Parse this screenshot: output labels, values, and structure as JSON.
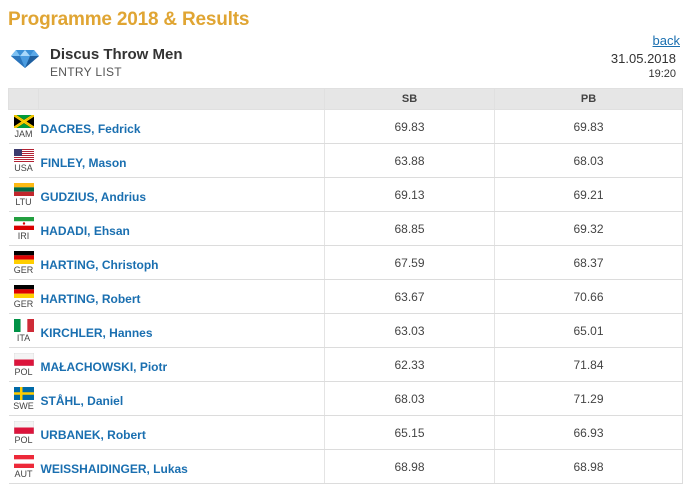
{
  "page": {
    "title": "Programme 2018 & Results",
    "event_name": "Discus Throw Men",
    "entry_label": "ENTRY LIST",
    "back_label": "back",
    "date": "31.05.2018",
    "time": "19:20"
  },
  "table": {
    "headers": [
      "",
      "",
      "SB",
      "PB"
    ],
    "rows": [
      {
        "country": "JAM",
        "name": "DACRES, Fedrick",
        "sb": "69.83",
        "pb": "69.83"
      },
      {
        "country": "USA",
        "name": "FINLEY, Mason",
        "sb": "63.88",
        "pb": "68.03"
      },
      {
        "country": "LTU",
        "name": "GUDZIUS, Andrius",
        "sb": "69.13",
        "pb": "69.21"
      },
      {
        "country": "IRI",
        "name": "HADADI, Ehsan",
        "sb": "68.85",
        "pb": "69.32"
      },
      {
        "country": "GER",
        "name": "HARTING, Christoph",
        "sb": "67.59",
        "pb": "68.37"
      },
      {
        "country": "GER",
        "name": "HARTING, Robert",
        "sb": "63.67",
        "pb": "70.66"
      },
      {
        "country": "ITA",
        "name": "KIRCHLER, Hannes",
        "sb": "63.03",
        "pb": "65.01"
      },
      {
        "country": "POL",
        "name": "MAŁACHOWSKI, Piotr",
        "sb": "62.33",
        "pb": "71.84"
      },
      {
        "country": "SWE",
        "name": "STÅHL, Daniel",
        "sb": "68.03",
        "pb": "71.29"
      },
      {
        "country": "POL",
        "name": "URBANEK, Robert",
        "sb": "65.15",
        "pb": "66.93"
      },
      {
        "country": "AUT",
        "name": "WEISSHAIDINGER, Lukas",
        "sb": "68.98",
        "pb": "68.98"
      }
    ]
  },
  "colors": {
    "title": "#e0a533",
    "link": "#1a6fb0",
    "header_bg": "#e6e6e6"
  },
  "icons": {
    "event": "diamond-icon"
  }
}
